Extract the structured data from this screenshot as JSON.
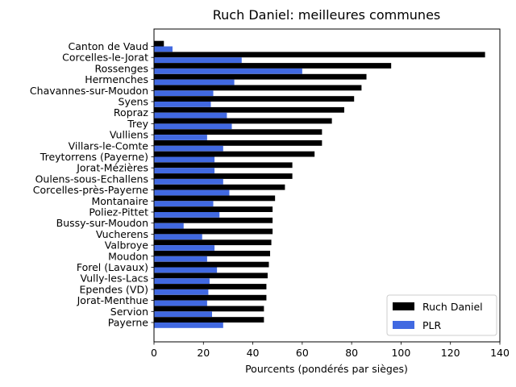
{
  "chart_data": {
    "type": "bar",
    "orientation": "horizontal",
    "title": "Ruch Daniel: meilleures communes",
    "xlabel": "Pourcents (pondérés par sièges)",
    "ylabel": "",
    "xlim": [
      0,
      140
    ],
    "xticks": [
      "0",
      "20",
      "40",
      "60",
      "80",
      "100",
      "120",
      "140"
    ],
    "legend_position": "lower right",
    "grid": false,
    "categories": [
      "Canton de Vaud",
      "Corcelles-le-Jorat",
      "Rossenges",
      "Hermenches",
      "Chavannes-sur-Moudon",
      "Syens",
      "Ropraz",
      "Trey",
      "Vulliens",
      "Villars-le-Comte",
      "Treytorrens (Payerne)",
      "Jorat-Mézières",
      "Oulens-sous-Echallens",
      "Corcelles-près-Payerne",
      "Montanaire",
      "Poliez-Pittet",
      "Bussy-sur-Moudon",
      "Vucherens",
      "Valbroye",
      "Moudon",
      "Forel (Lavaux)",
      "Vully-les-Lacs",
      "Ependes (VD)",
      "Jorat-Menthue",
      "Servion",
      "Payerne"
    ],
    "series": [
      {
        "name": "Ruch Daniel",
        "color": "#000000",
        "values": [
          4,
          134,
          96,
          86,
          84,
          81,
          77,
          72,
          68,
          68,
          65,
          56,
          56,
          53,
          49,
          48,
          48,
          48,
          47.5,
          47,
          46.5,
          46,
          45.5,
          45.5,
          44.5,
          44.5
        ]
      },
      {
        "name": "PLR",
        "color": "#4169e1",
        "values": [
          7.5,
          35.5,
          60,
          32.5,
          24,
          23,
          29.5,
          31.5,
          21.5,
          28,
          24.5,
          24.5,
          28,
          30.5,
          24,
          26.5,
          12,
          19.5,
          24.5,
          21.5,
          25.5,
          22.5,
          22,
          21.5,
          23.5,
          28
        ]
      }
    ]
  }
}
